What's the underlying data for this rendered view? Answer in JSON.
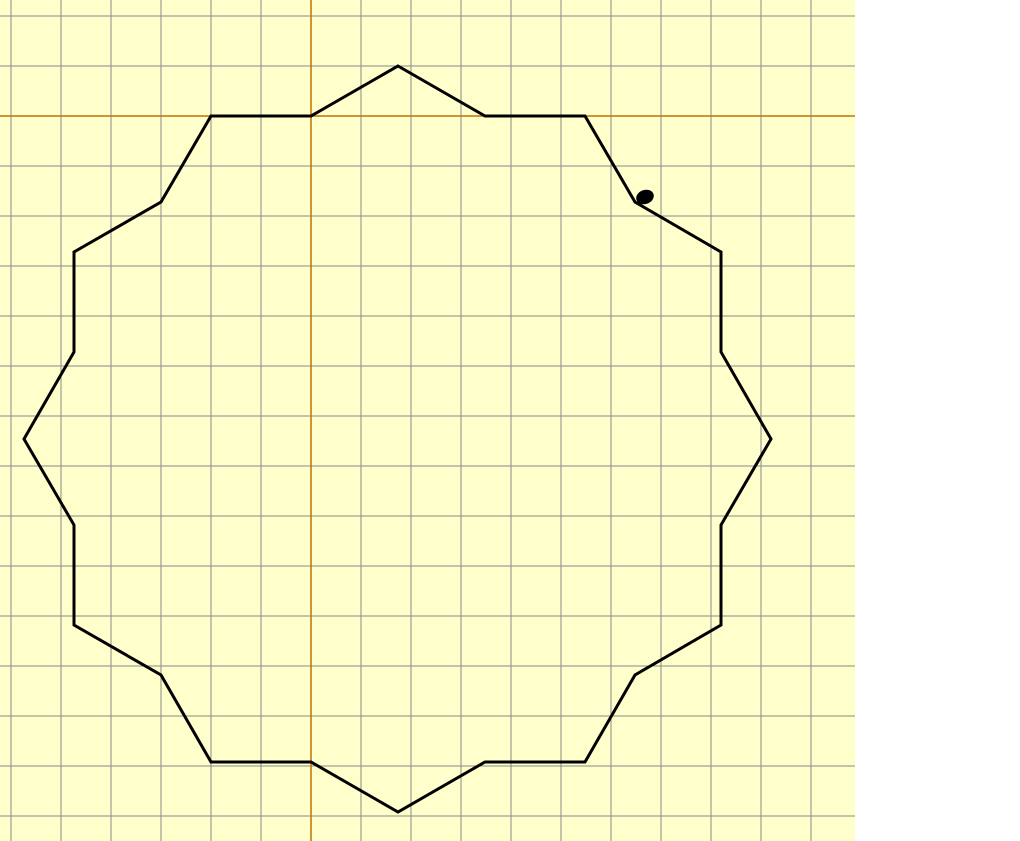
{
  "canvas": {
    "background_color": "#ffffcc",
    "grid_color": "#8a8a8a",
    "axis_color": "#c07000",
    "shape_color": "#000000",
    "turtle_color": "#000000",
    "turtle_icon": "turtle-icon"
  }
}
